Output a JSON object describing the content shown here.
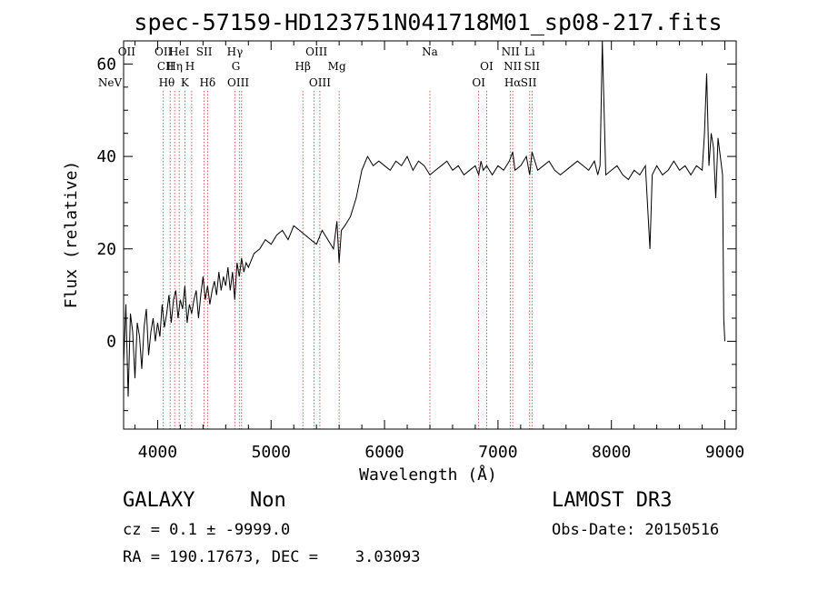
{
  "chart_data": {
    "type": "line",
    "title": "spec-57159-HD123751N041718M01_sp08-217.fits",
    "xlabel": "Wavelength (Å)",
    "ylabel": "Flux (relative)",
    "xlim": [
      3700,
      9100
    ],
    "ylim": [
      -19,
      65
    ],
    "x_ticks": [
      4000,
      5000,
      6000,
      7000,
      8000,
      9000
    ],
    "y_ticks": [
      0,
      20,
      40,
      60
    ],
    "grid": false,
    "series": [
      {
        "color": "#000000",
        "x": [
          3700,
          3720,
          3740,
          3760,
          3780,
          3800,
          3820,
          3840,
          3860,
          3880,
          3900,
          3920,
          3940,
          3960,
          3980,
          4000,
          4020,
          4040,
          4060,
          4080,
          4100,
          4120,
          4140,
          4160,
          4180,
          4200,
          4220,
          4240,
          4260,
          4280,
          4300,
          4320,
          4340,
          4360,
          4380,
          4400,
          4420,
          4440,
          4460,
          4480,
          4500,
          4520,
          4540,
          4560,
          4580,
          4600,
          4620,
          4640,
          4660,
          4680,
          4700,
          4720,
          4740,
          4760,
          4780,
          4800,
          4850,
          4900,
          4950,
          5000,
          5050,
          5100,
          5150,
          5200,
          5250,
          5300,
          5350,
          5400,
          5450,
          5500,
          5550,
          5580,
          5600,
          5620,
          5650,
          5700,
          5750,
          5800,
          5850,
          5900,
          5950,
          6000,
          6050,
          6100,
          6150,
          6200,
          6250,
          6300,
          6350,
          6400,
          6450,
          6500,
          6550,
          6600,
          6650,
          6700,
          6750,
          6800,
          6830,
          6850,
          6870,
          6900,
          6950,
          7000,
          7050,
          7100,
          7130,
          7150,
          7200,
          7250,
          7280,
          7300,
          7350,
          7400,
          7450,
          7500,
          7550,
          7600,
          7650,
          7700,
          7750,
          7800,
          7850,
          7880,
          7900,
          7920,
          7950,
          8000,
          8050,
          8100,
          8150,
          8200,
          8250,
          8300,
          8340,
          8360,
          8380,
          8400,
          8450,
          8500,
          8550,
          8600,
          8650,
          8700,
          8750,
          8800,
          8820,
          8840,
          8860,
          8880,
          8900,
          8920,
          8940,
          8960,
          8980,
          8990,
          9000
        ],
        "y": [
          -5,
          8,
          -12,
          6,
          2,
          -8,
          4,
          1,
          -6,
          3,
          7,
          -3,
          2,
          5,
          0,
          4,
          1,
          8,
          3,
          6,
          10,
          4,
          9,
          11,
          5,
          9,
          7,
          12,
          4,
          8,
          6,
          9,
          11,
          5,
          10,
          14,
          9,
          12,
          8,
          11,
          13,
          10,
          15,
          11,
          14,
          12,
          16,
          11,
          15,
          9,
          17,
          14,
          18,
          15,
          17,
          16,
          19,
          20,
          22,
          21,
          23,
          24,
          22,
          25,
          24,
          23,
          22,
          21,
          24,
          22,
          20,
          26,
          17,
          24,
          25,
          27,
          31,
          37,
          40,
          38,
          39,
          38,
          37,
          39,
          38,
          40,
          37,
          39,
          38,
          36,
          37,
          38,
          39,
          37,
          38,
          36,
          37,
          38,
          36,
          39,
          37,
          38,
          36,
          38,
          37,
          39,
          41,
          37,
          38,
          40,
          36,
          41,
          37,
          38,
          39,
          37,
          36,
          37,
          38,
          39,
          38,
          37,
          39,
          36,
          38,
          65,
          36,
          37,
          38,
          36,
          35,
          37,
          36,
          38,
          20,
          36,
          37,
          38,
          36,
          37,
          39,
          37,
          38,
          36,
          38,
          37,
          45,
          58,
          38,
          45,
          42,
          31,
          44,
          40,
          36,
          5,
          0
        ]
      }
    ],
    "spectral_lines": [
      {
        "label": "NeV",
        "x": 3426,
        "row": 3
      },
      {
        "label": "OII",
        "x": 3727,
        "row": 1
      },
      {
        "label": "OII",
        "x": 4050,
        "row": 1
      },
      {
        "label": "CII",
        "x": 4070,
        "row": 2
      },
      {
        "label": "Hθ",
        "x": 4080,
        "row": 3
      },
      {
        "label": "Hη",
        "x": 4150,
        "row": 2
      },
      {
        "label": "HeI",
        "x": 4190,
        "row": 1
      },
      {
        "label": "K",
        "x": 4240,
        "row": 3
      },
      {
        "label": "H",
        "x": 4285,
        "row": 2
      },
      {
        "label": "SII",
        "x": 4410,
        "row": 1
      },
      {
        "label": "Hδ",
        "x": 4440,
        "row": 3
      },
      {
        "label": "Hγ",
        "x": 4681,
        "row": 1
      },
      {
        "label": "G",
        "x": 4690,
        "row": 2
      },
      {
        "label": "OIII",
        "x": 4710,
        "row": 3
      },
      {
        "label": "Hβ",
        "x": 5280,
        "row": 2
      },
      {
        "label": "OIII",
        "x": 5400,
        "row": 1
      },
      {
        "label": "OIII",
        "x": 5430,
        "row": 3
      },
      {
        "label": "Mg",
        "x": 5580,
        "row": 2
      },
      {
        "label": "Na",
        "x": 6400,
        "row": 1
      },
      {
        "label": "OI",
        "x": 6830,
        "row": 3
      },
      {
        "label": "OI",
        "x": 6900,
        "row": 2
      },
      {
        "label": "NII",
        "x": 7110,
        "row": 1
      },
      {
        "label": "NII",
        "x": 7130,
        "row": 2
      },
      {
        "label": "Hα",
        "x": 7130,
        "row": 3
      },
      {
        "label": "SII",
        "x": 7270,
        "row": 3
      },
      {
        "label": "SII",
        "x": 7300,
        "row": 2
      },
      {
        "label": "Li",
        "x": 7280,
        "row": 1
      }
    ],
    "line_positions": [
      4050,
      4110,
      4150,
      4190,
      4240,
      4300,
      4410,
      4440,
      4680,
      4720,
      4740,
      5280,
      5380,
      5430,
      5600,
      6400,
      6830,
      6900,
      7110,
      7130,
      7280,
      7300
    ]
  },
  "info": {
    "class_left": "GALAXY",
    "subclass": "Non",
    "survey": "LAMOST DR3",
    "cz": "cz = 0.1 ± -9999.0",
    "obs_date": "Obs-Date: 20150516",
    "radec": "RA = 190.17673, DEC =    3.03093"
  }
}
